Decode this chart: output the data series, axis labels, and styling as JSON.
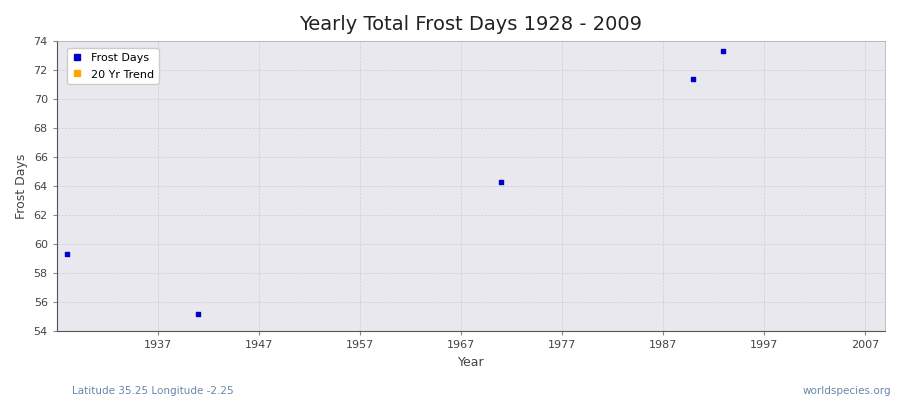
{
  "title": "Yearly Total Frost Days 1928 - 2009",
  "xlabel": "Year",
  "ylabel": "Frost Days",
  "fig_bg_color": "#ffffff",
  "plot_bg_color": "#e8e8ee",
  "frost_days_color": "#0000cc",
  "trend_color": "#ffa500",
  "points": [
    {
      "year": 1928,
      "value": 59.3
    },
    {
      "year": 1941,
      "value": 55.2
    },
    {
      "year": 1971,
      "value": 64.3
    },
    {
      "year": 1990,
      "value": 71.4
    },
    {
      "year": 1993,
      "value": 73.3
    }
  ],
  "xlim": [
    1927,
    2009
  ],
  "ylim": [
    54,
    74
  ],
  "yticks": [
    54,
    56,
    58,
    60,
    62,
    64,
    66,
    68,
    70,
    72,
    74
  ],
  "xticks": [
    1937,
    1947,
    1957,
    1967,
    1977,
    1987,
    1997,
    2007
  ],
  "marker": "s",
  "marker_size": 3,
  "subtitle_left": "Latitude 35.25 Longitude -2.25",
  "subtitle_right": "worldspecies.org",
  "grid_color": "#ccccdd",
  "grid_linestyle": "--",
  "grid_linewidth": 0.5,
  "title_fontsize": 14,
  "axis_label_fontsize": 9,
  "tick_label_fontsize": 8,
  "tick_label_color": "#444444",
  "title_color": "#222222"
}
